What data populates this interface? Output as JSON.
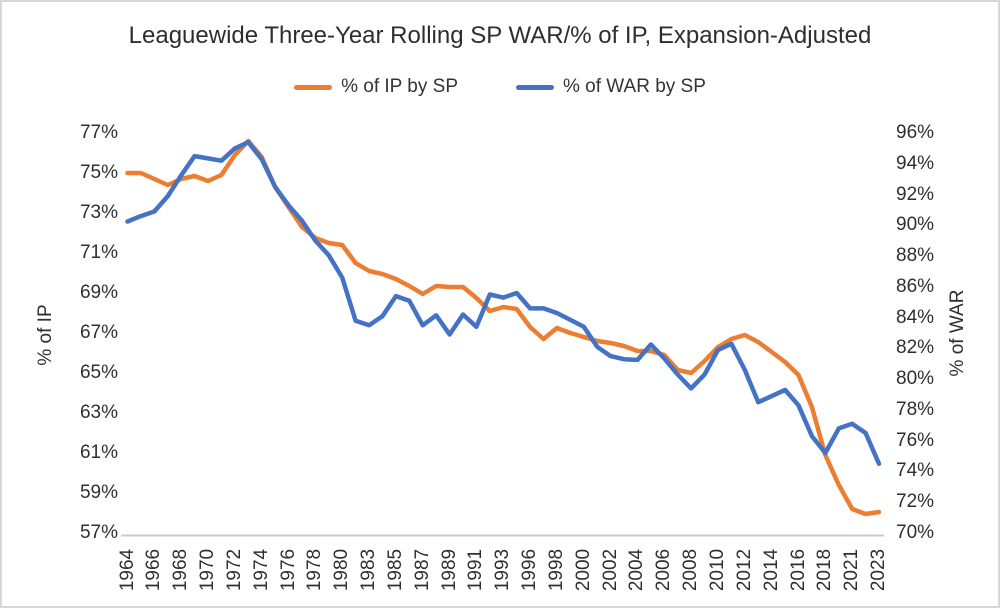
{
  "chart_data": {
    "type": "line",
    "title": "Leaguewide Three-Year Rolling SP WAR/% of IP, Expansion-Adjusted",
    "legend_position": "top",
    "grid": false,
    "x": [
      1964,
      1965,
      1966,
      1967,
      1968,
      1969,
      1970,
      1971,
      1972,
      1973,
      1974,
      1975,
      1976,
      1977,
      1978,
      1979,
      1980,
      1982,
      1983,
      1984,
      1985,
      1986,
      1987,
      1988,
      1989,
      1990,
      1991,
      1992,
      1993,
      1995,
      1996,
      1997,
      1998,
      1999,
      2000,
      2001,
      2002,
      2003,
      2004,
      2005,
      2006,
      2007,
      2008,
      2009,
      2010,
      2011,
      2012,
      2013,
      2014,
      2015,
      2016,
      2017,
      2018,
      2019,
      2021,
      2022,
      2023
    ],
    "x_tick_labels": [
      "1964",
      "1966",
      "1968",
      "1970",
      "1972",
      "1974",
      "1976",
      "1978",
      "1980",
      "1983",
      "1985",
      "1987",
      "1989",
      "1991",
      "1993",
      "1996",
      "1998",
      "2000",
      "2002",
      "2004",
      "2006",
      "2008",
      "2010",
      "2012",
      "2014",
      "2016",
      "2018",
      "2021",
      "2023"
    ],
    "series": [
      {
        "name": "% of IP by SP",
        "axis": "left",
        "color": "#ED7D31",
        "values": [
          75.0,
          75.0,
          74.7,
          74.4,
          74.7,
          74.85,
          74.6,
          74.9,
          75.9,
          76.6,
          75.8,
          74.3,
          73.3,
          72.3,
          71.75,
          71.5,
          71.4,
          70.5,
          70.1,
          69.95,
          69.7,
          69.35,
          68.95,
          69.35,
          69.3,
          69.3,
          68.75,
          68.1,
          68.3,
          68.2,
          67.3,
          66.7,
          67.25,
          67.0,
          66.8,
          66.6,
          66.5,
          66.35,
          66.1,
          66.1,
          65.9,
          65.15,
          65.0,
          65.6,
          66.3,
          66.7,
          66.9,
          66.55,
          66.05,
          65.55,
          64.9,
          63.3,
          60.9,
          59.4,
          58.2,
          57.95,
          58.05
        ]
      },
      {
        "name": "% of WAR by SP",
        "axis": "right",
        "color": "#4472C4",
        "values": [
          90.25,
          90.6,
          90.9,
          91.9,
          93.25,
          94.5,
          94.35,
          94.2,
          95.0,
          95.4,
          94.3,
          92.5,
          91.3,
          90.3,
          89.0,
          88.05,
          86.6,
          83.8,
          83.5,
          84.1,
          85.4,
          85.1,
          83.5,
          84.15,
          82.9,
          84.2,
          83.4,
          85.5,
          85.3,
          85.6,
          84.6,
          84.6,
          84.3,
          83.85,
          83.4,
          82.1,
          81.5,
          81.3,
          81.25,
          82.25,
          81.35,
          80.3,
          79.4,
          80.3,
          81.9,
          82.3,
          80.6,
          78.5,
          78.9,
          79.3,
          78.3,
          76.3,
          75.2,
          76.8,
          77.1,
          76.5,
          74.5
        ]
      }
    ],
    "left_axis": {
      "title": "% of IP",
      "min": 57,
      "max": 77,
      "step": 2,
      "tick_suffix": "%",
      "tick_labels": [
        "77%",
        "75%",
        "73%",
        "71%",
        "69%",
        "67%",
        "65%",
        "63%",
        "61%",
        "59%",
        "57%"
      ]
    },
    "right_axis": {
      "title": "% of WAR",
      "min": 70,
      "max": 96,
      "step": 2,
      "tick_suffix": "%",
      "tick_labels": [
        "96%",
        "94%",
        "92%",
        "90%",
        "88%",
        "86%",
        "84%",
        "82%",
        "80%",
        "78%",
        "76%",
        "74%",
        "72%",
        "70%"
      ]
    },
    "axis_line_color": "#c9c9c9"
  }
}
